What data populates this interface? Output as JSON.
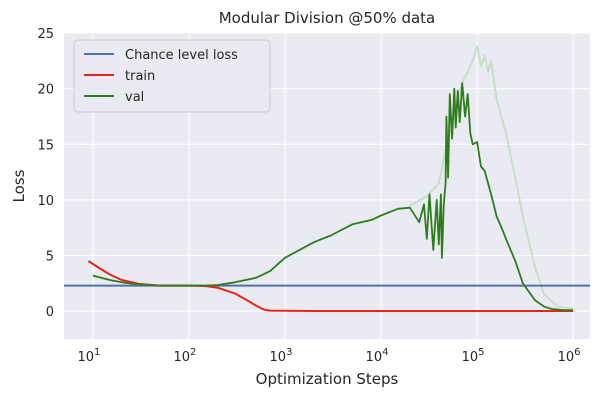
{
  "chart_data": {
    "type": "line",
    "title": "Modular Division @50% data",
    "xlabel": "Optimization Steps",
    "ylabel": "Loss",
    "xscale": "log",
    "xlim": [
      5,
      1500000
    ],
    "ylim": [
      -2.5,
      25
    ],
    "x_ticks": [
      {
        "value": 10,
        "base": "10",
        "exp": "1"
      },
      {
        "value": 100,
        "base": "10",
        "exp": "2"
      },
      {
        "value": 1000,
        "base": "10",
        "exp": "3"
      },
      {
        "value": 10000,
        "base": "10",
        "exp": "4"
      },
      {
        "value": 100000,
        "base": "10",
        "exp": "5"
      },
      {
        "value": 1000000,
        "base": "10",
        "exp": "6"
      }
    ],
    "y_ticks": [
      "0",
      "5",
      "10",
      "15",
      "20",
      "25"
    ],
    "grid": true,
    "legend_position": "upper-left",
    "colors": {
      "background": "#eaeaf2",
      "grid": "#ffffff",
      "chance": "#4c72b0",
      "train": "#e8231c",
      "val": "#2d7d1c",
      "val_shade": "#c9dec8"
    },
    "chance_level": 2.3,
    "series": [
      {
        "name": "Chance level loss",
        "kind": "hline"
      },
      {
        "name": "train",
        "x": [
          9,
          12,
          15,
          20,
          30,
          50,
          100,
          150,
          200,
          300,
          400,
          500,
          600,
          700,
          1000,
          2000,
          10000,
          100000,
          1000000
        ],
        "y": [
          4.5,
          3.8,
          3.3,
          2.8,
          2.45,
          2.3,
          2.3,
          2.25,
          2.1,
          1.6,
          1.0,
          0.5,
          0.15,
          0.05,
          0.03,
          0.02,
          0.02,
          0.02,
          0.02
        ]
      },
      {
        "name": "val",
        "x": [
          10,
          15,
          20,
          30,
          50,
          100,
          150,
          200,
          300,
          500,
          700,
          1000,
          2000,
          3000,
          5000,
          8000,
          10000,
          15000,
          20000,
          25000,
          28000,
          30000,
          32000,
          35000,
          38000,
          40000,
          42000,
          43000,
          45000,
          47000,
          48000,
          50000,
          52000,
          55000,
          58000,
          60000,
          63000,
          66000,
          70000,
          75000,
          80000,
          85000,
          90000,
          100000,
          110000,
          120000,
          140000,
          160000,
          180000,
          200000,
          250000,
          300000,
          400000,
          500000,
          600000,
          800000,
          1000000
        ],
        "y": [
          3.2,
          2.8,
          2.6,
          2.4,
          2.3,
          2.3,
          2.3,
          2.35,
          2.6,
          3.0,
          3.6,
          4.8,
          6.2,
          6.8,
          7.8,
          8.2,
          8.6,
          9.2,
          9.3,
          8.0,
          9.6,
          6.5,
          10.5,
          5.5,
          10.0,
          6.0,
          10.5,
          4.8,
          9.5,
          11.5,
          17.5,
          12.0,
          19.5,
          15.5,
          20.0,
          16.5,
          19.8,
          17.0,
          20.5,
          17.5,
          19.5,
          16.0,
          15.0,
          15.2,
          13.0,
          12.6,
          10.5,
          8.5,
          7.5,
          6.5,
          4.5,
          2.5,
          1.0,
          0.4,
          0.2,
          0.1,
          0.1
        ]
      }
    ],
    "val_shadow": {
      "x": [
        20000,
        30000,
        40000,
        50000,
        60000,
        70000,
        80000,
        90000,
        100000,
        110000,
        120000,
        130000,
        140000,
        160000,
        200000,
        250000,
        300000,
        400000,
        500000,
        700000,
        1000000
      ],
      "y": [
        9.5,
        10.3,
        11.5,
        15.5,
        18.5,
        20.5,
        21.5,
        22.5,
        23.8,
        22.0,
        23.0,
        21.5,
        22.5,
        19.0,
        16.0,
        12.0,
        8.5,
        4.0,
        1.5,
        0.4,
        0.2
      ]
    }
  }
}
